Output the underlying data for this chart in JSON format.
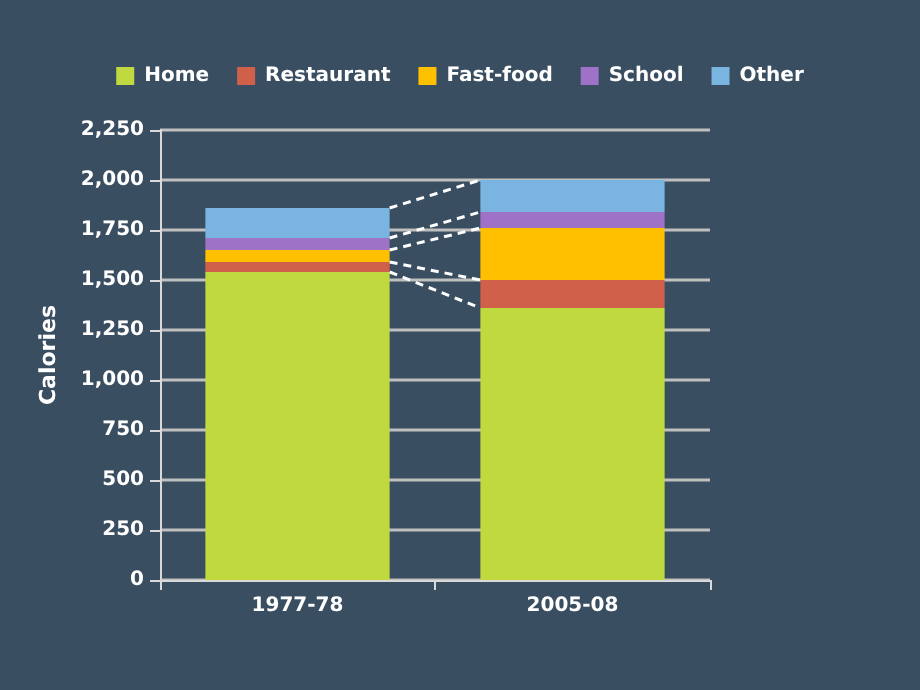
{
  "chart_data": {
    "type": "bar",
    "stacked": true,
    "ylabel": "Calories",
    "categories": [
      "1977-78",
      "2005-08"
    ],
    "series": [
      {
        "name": "Home",
        "color": "#bfd93e",
        "values": [
          1540,
          1360
        ]
      },
      {
        "name": "Restaurant",
        "color": "#d0604a",
        "values": [
          50,
          140
        ]
      },
      {
        "name": "Fast-food",
        "color": "#ffc000",
        "values": [
          60,
          260
        ]
      },
      {
        "name": "School",
        "color": "#9e72c6",
        "values": [
          60,
          80
        ]
      },
      {
        "name": "Other",
        "color": "#7ab4e0",
        "values": [
          150,
          160
        ]
      }
    ],
    "ylim": [
      0,
      2250
    ],
    "yticks": [
      0,
      250,
      500,
      750,
      {
        "value": 1000,
        "label": "1,000"
      },
      {
        "value": 1250,
        "label": "1,250"
      },
      {
        "value": 1500,
        "label": "1,500"
      },
      {
        "value": 1750,
        "label": "1,750"
      },
      {
        "value": 2000,
        "label": "2,000"
      },
      {
        "value": 2250,
        "label": "2,250"
      }
    ],
    "grid": "y",
    "legend": "top"
  }
}
